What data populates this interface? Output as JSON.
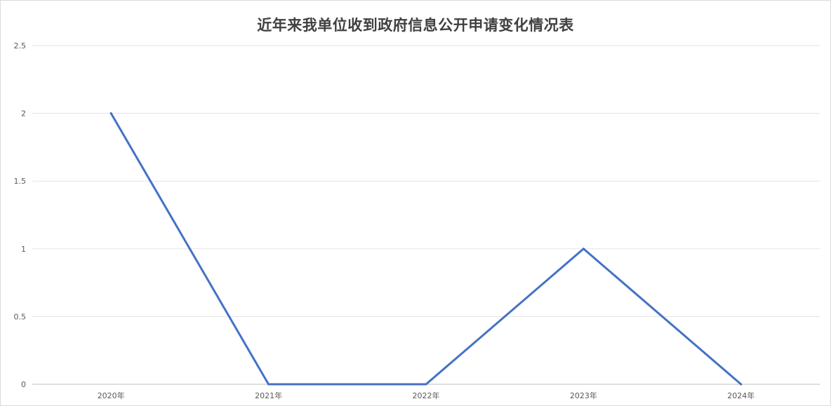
{
  "chart_data": {
    "type": "line",
    "title": "近年来我单位收到政府信息公开申请变化情况表",
    "xlabel": "",
    "ylabel": "",
    "categories": [
      "2020年",
      "2021年",
      "2022年",
      "2023年",
      "2024年"
    ],
    "series": [
      {
        "values": [
          2,
          0,
          0,
          1,
          0
        ],
        "color": "#4472c4"
      }
    ],
    "ylim": [
      0,
      2.5
    ],
    "yticks": [
      "0",
      "0.5",
      "1",
      "1.5",
      "2",
      "2.5"
    ],
    "grid": true,
    "legend": "none"
  }
}
